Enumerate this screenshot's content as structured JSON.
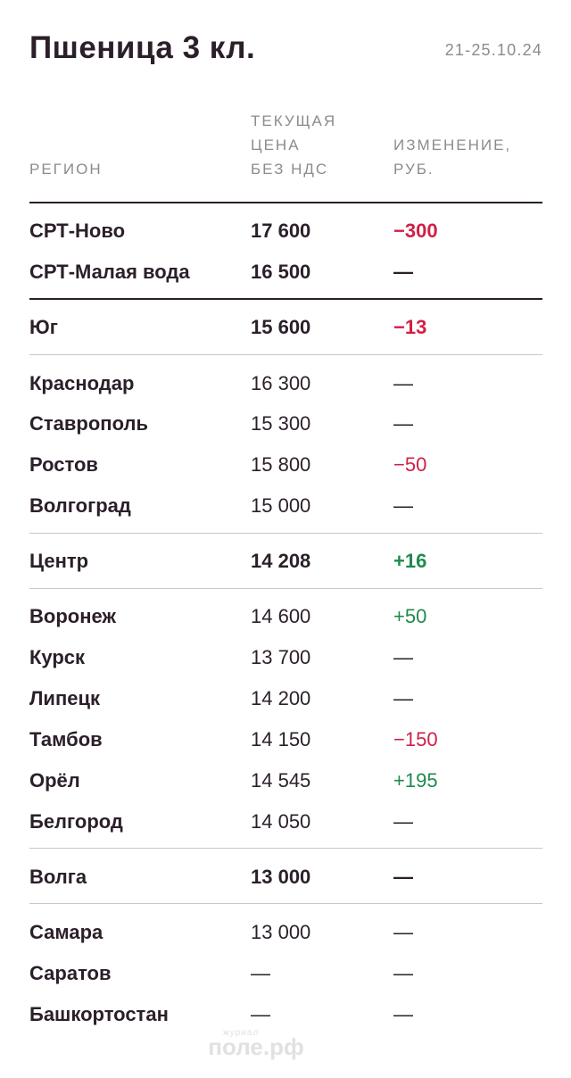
{
  "header": {
    "title": "Пшеница 3 кл.",
    "date": "21-25.10.24"
  },
  "columns": {
    "region": [
      "РЕГИОН"
    ],
    "price": [
      "ТЕКУЩАЯ",
      "ЦЕНА",
      "БЕЗ НДС"
    ],
    "change": [
      "ИЗМЕНЕНИЕ,",
      "РУБ."
    ]
  },
  "rows": [
    {
      "region": "СРТ-Ново",
      "price": "17 600",
      "change": "−300"
    },
    {
      "region": "СРТ-Малая вода",
      "price": "16 500",
      "change": "—"
    },
    {
      "region": "Юг",
      "price": "15 600",
      "change": "−13"
    },
    {
      "region": "Краснодар",
      "price": "16 300",
      "change": "—"
    },
    {
      "region": "Ставрополь",
      "price": "15 300",
      "change": "—"
    },
    {
      "region": "Ростов",
      "price": "15 800",
      "change": "−50"
    },
    {
      "region": "Волгоград",
      "price": "15 000",
      "change": "—"
    },
    {
      "region": "Центр",
      "price": "14 208",
      "change": "+16"
    },
    {
      "region": "Воронеж",
      "price": "14 600",
      "change": "+50"
    },
    {
      "region": "Курск",
      "price": "13 700",
      "change": "—"
    },
    {
      "region": "Липецк",
      "price": "14 200",
      "change": "—"
    },
    {
      "region": "Тамбов",
      "price": "14 150",
      "change": "−150"
    },
    {
      "region": "Орёл",
      "price": "14 545",
      "change": "+195"
    },
    {
      "region": "Белгород",
      "price": "14 050",
      "change": "—"
    },
    {
      "region": "Волга",
      "price": "13 000",
      "change": "—"
    },
    {
      "region": "Самара",
      "price": "13 000",
      "change": "—"
    },
    {
      "region": "Саратов",
      "price": "—",
      "change": "—"
    },
    {
      "region": "Башкортостан",
      "price": "—",
      "change": "—"
    }
  ],
  "colors": {
    "text": "#2b1f2a",
    "muted": "#8e8a8e",
    "negative": "#d11f46",
    "positive": "#1f8a4c",
    "divider": "#c9c6c9"
  },
  "logo": {
    "small": "журнал",
    "big": "поле.рф"
  }
}
